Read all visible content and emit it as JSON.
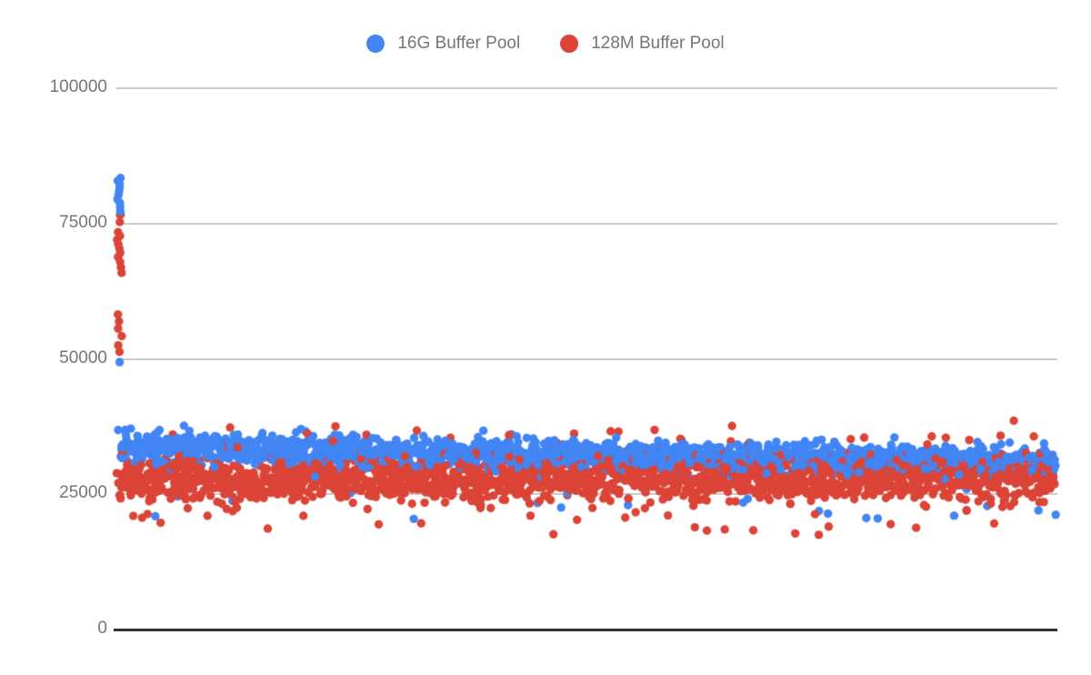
{
  "chart_data": {
    "type": "scatter",
    "title": "",
    "legend_position": "top-center",
    "grid": true,
    "background_color": "#ffffff",
    "gridline_color": "#cccccc",
    "axis_line_color": "#333333",
    "text_color": "#757575",
    "point_radius": 4.7,
    "seed": 7,
    "x_axis": {
      "label": "",
      "ticks": [],
      "note": "time/sample index, no visible labels"
    },
    "y_axis": {
      "label": "",
      "min": 0,
      "max": 100000,
      "ticks": [
        {
          "label": "0",
          "value": 0
        },
        {
          "label": "25000",
          "value": 25000
        },
        {
          "label": "50000",
          "value": 50000
        },
        {
          "label": "75000",
          "value": 75000
        },
        {
          "label": "100000",
          "value": 100000
        }
      ]
    },
    "series": [
      {
        "name": "16G Buffer Pool",
        "color": "#4285f4",
        "band": {
          "count": 1700,
          "x_start_frac": 0.004,
          "x_end_frac": 0.997,
          "y_mean_start": 33700,
          "y_mean_end": 30900,
          "y_sd": 1350,
          "clip_min": 19800,
          "clip_max_rel": 4600,
          "low_outlier": {
            "p_start": 0.004,
            "p_end": 0.012,
            "min": 19800,
            "max": 26500
          }
        },
        "spike_points": [
          [
            0.003,
            83400
          ],
          [
            0.003,
            82900
          ],
          [
            0.003,
            82300
          ],
          [
            0.003,
            81700
          ],
          [
            0.003,
            81000
          ],
          [
            0.003,
            80300
          ],
          [
            0.003,
            79500
          ],
          [
            0.003,
            78800
          ],
          [
            0.003,
            78100
          ],
          [
            0.003,
            77300
          ],
          [
            0.003,
            76700
          ],
          [
            0.003,
            49400
          ]
        ]
      },
      {
        "name": "128M Buffer Pool",
        "color": "#db4437",
        "band": {
          "count": 2000,
          "x_start_frac": 0.002,
          "x_end_frac": 0.997,
          "y_mean_start": 27500,
          "y_mean_end": 28500,
          "y_sd": 2150,
          "clip_min": 17300,
          "clip_max": 38800,
          "low_outlier": {
            "p_start": 0.011,
            "p_end": 0.011,
            "min": 17400,
            "max": 21500
          },
          "high_outlier": {
            "p": 0.01,
            "add_min": 6000,
            "add_max": 10300
          }
        },
        "spike_points": [
          [
            0.003,
            76600
          ],
          [
            0.004,
            75300
          ],
          [
            0.003,
            73400
          ],
          [
            0.004,
            72700
          ],
          [
            0.003,
            72000
          ],
          [
            0.004,
            71200
          ],
          [
            0.003,
            70400
          ],
          [
            0.004,
            69600
          ],
          [
            0.003,
            68800
          ],
          [
            0.004,
            67900
          ],
          [
            0.003,
            66900
          ],
          [
            0.004,
            65900
          ],
          [
            0.003,
            58200
          ],
          [
            0.004,
            56900
          ],
          [
            0.003,
            55600
          ],
          [
            0.004,
            54200
          ],
          [
            0.003,
            52500
          ],
          [
            0.004,
            51300
          ]
        ]
      }
    ]
  }
}
